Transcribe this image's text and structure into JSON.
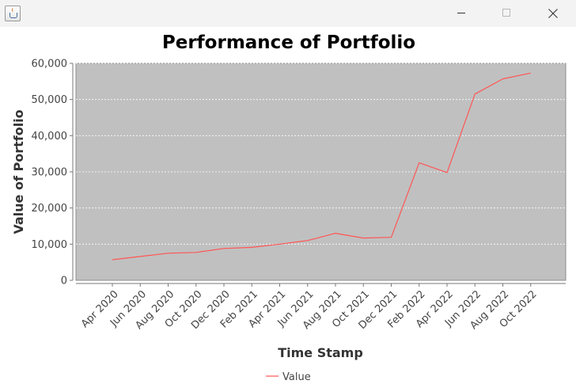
{
  "window": {
    "title": "",
    "app_icon": "java-icon",
    "controls": [
      "minimize-icon",
      "maximize-icon",
      "close-icon"
    ]
  },
  "chart_data": {
    "type": "line",
    "title": "Performance of Portfolio",
    "xlabel": "Time Stamp",
    "ylabel": "Value of Portfolio",
    "x_tick_labels": [
      "Apr 2020",
      "Jun 2020",
      "Aug 2020",
      "Oct 2020",
      "Dec 2020",
      "Feb 2021",
      "Apr 2021",
      "Jun 2021",
      "Aug 2021",
      "Oct 2021",
      "Dec 2021",
      "Feb 2022",
      "Apr 2022",
      "Jun 2022",
      "Aug 2022",
      "Oct 2022"
    ],
    "y_tick_labels": [
      "0",
      "10,000",
      "20,000",
      "30,000",
      "40,000",
      "50,000",
      "60,000"
    ],
    "ylim": [
      0,
      60000
    ],
    "grid": true,
    "legend_position": "bottom",
    "plot_background": "#c0c0c0",
    "series": [
      {
        "name": "Value",
        "color": "#ff5555",
        "x": [
          "Apr 2020",
          "Jun 2020",
          "Aug 2020",
          "Oct 2020",
          "Dec 2020",
          "Feb 2021",
          "Apr 2021",
          "Jun 2021",
          "Aug 2021",
          "Oct 2021",
          "Dec 2021",
          "Feb 2022",
          "Apr 2022",
          "Jun 2022",
          "Aug 2022",
          "Oct 2022"
        ],
        "values": [
          5700,
          6600,
          7500,
          7700,
          8800,
          9100,
          10000,
          11000,
          13000,
          11700,
          11900,
          32500,
          29800,
          51500,
          55700,
          57300
        ]
      }
    ]
  }
}
